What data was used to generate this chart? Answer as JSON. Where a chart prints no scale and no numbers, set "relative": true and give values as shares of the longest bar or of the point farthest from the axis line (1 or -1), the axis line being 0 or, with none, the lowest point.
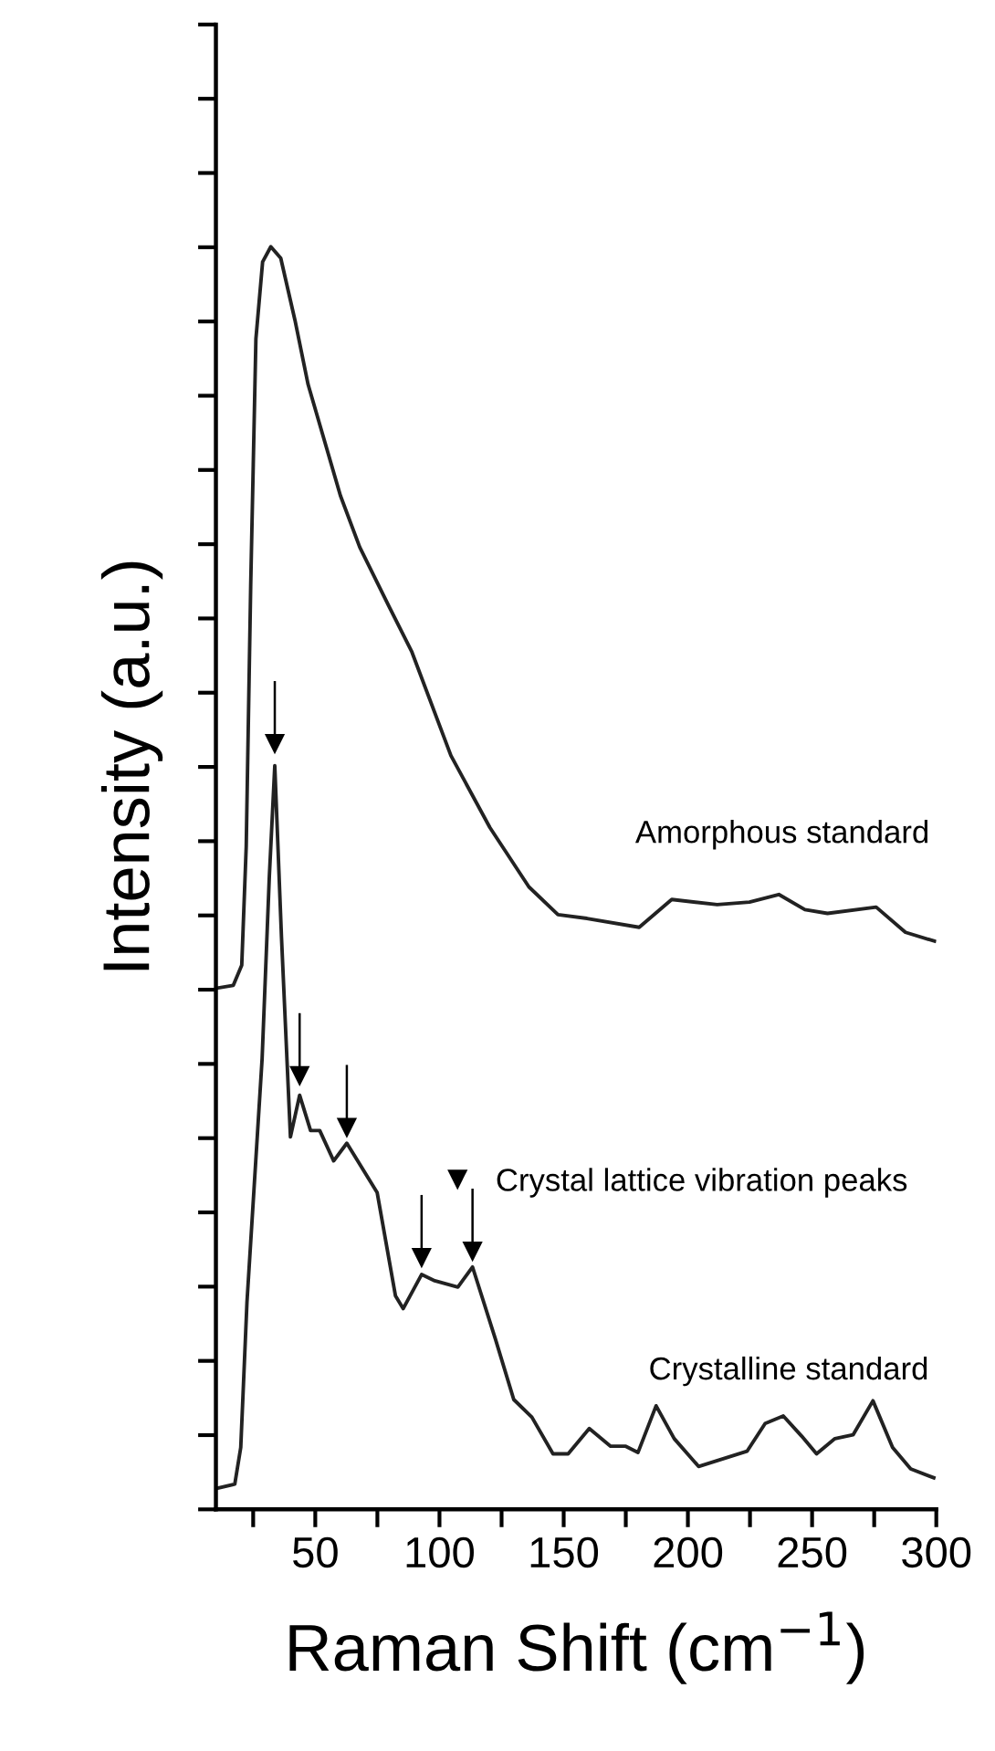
{
  "chart_data": {
    "type": "line",
    "relative": true,
    "xlabel": "Raman Shift (cm$^{−1}$)",
    "ylabel": "Intensity (a.u.)",
    "xlim": [
      10,
      300
    ],
    "xticks": [
      {
        "value": 25,
        "label": null
      },
      50,
      {
        "value": 75,
        "label": null
      },
      100,
      {
        "value": 125,
        "label": null
      },
      150,
      {
        "value": 175,
        "label": null
      },
      200,
      {
        "value": 225,
        "label": null
      },
      250,
      {
        "value": 275,
        "label": null
      },
      300
    ],
    "grid": false,
    "legend": "right",
    "line_style": "solid",
    "marker": "none",
    "series": [
      {
        "name": "Amorphous standard",
        "color": "#222222",
        "x": [
          11,
          17,
          20.4,
          22.2,
          24,
          26.1,
          28.8,
          32.1,
          36.1,
          41.8,
          47.1,
          60.1,
          67.9,
          79.7,
          88.9,
          104.6,
          120.3,
          136,
          147.7,
          159.4,
          180.4,
          193.5,
          211.8,
          224.8,
          236.6,
          247.1,
          256.2,
          275.8,
          287.6,
          299.3
        ],
        "values": [
          0.413,
          0.415,
          0.431,
          0.525,
          0.731,
          0.927,
          0.988,
          1.0,
          0.991,
          0.942,
          0.891,
          0.803,
          0.762,
          0.715,
          0.679,
          0.597,
          0.54,
          0.493,
          0.471,
          0.468,
          0.461,
          0.483,
          0.479,
          0.481,
          0.487,
          0.475,
          0.472,
          0.477,
          0.457,
          0.45
        ]
      },
      {
        "name": "Crystalline standard",
        "color": "#222222",
        "x": [
          11,
          17.6,
          20,
          22.5,
          28.6,
          31.5,
          33.7,
          36.4,
          40,
          43.7,
          48.1,
          51.8,
          57.4,
          62.7,
          74.9,
          82.3,
          85.4,
          92.8,
          98.1,
          107.4,
          113.3,
          122.5,
          129.9,
          137.2,
          145.7,
          151.8,
          160.3,
          168.9,
          175,
          179.9,
          187.2,
          194.5,
          204.3,
          223.8,
          231.1,
          238.4,
          245.8,
          251.8,
          259.2,
          266.5,
          274.5,
          282.4,
          289.7,
          299
        ],
        "values": [
          0.017,
          0.02,
          0.049,
          0.164,
          0.357,
          0.501,
          0.589,
          0.453,
          0.295,
          0.328,
          0.3,
          0.3,
          0.276,
          0.29,
          0.251,
          0.169,
          0.159,
          0.186,
          0.181,
          0.176,
          0.192,
          0.135,
          0.087,
          0.073,
          0.044,
          0.044,
          0.064,
          0.05,
          0.05,
          0.045,
          0.082,
          0.056,
          0.034,
          0.046,
          0.068,
          0.074,
          0.058,
          0.044,
          0.056,
          0.059,
          0.086,
          0.049,
          0.032,
          0.025
        ]
      },
      {
        "name": "Crystal lattice vibration peaks",
        "type": "scatter",
        "marker": "triangle",
        "color": "#000000",
        "x": [
          33.7,
          43.7,
          62.7,
          92.8,
          113.3
        ],
        "values": [
          0.606,
          0.343,
          0.302,
          0.199,
          0.204
        ]
      }
    ]
  }
}
